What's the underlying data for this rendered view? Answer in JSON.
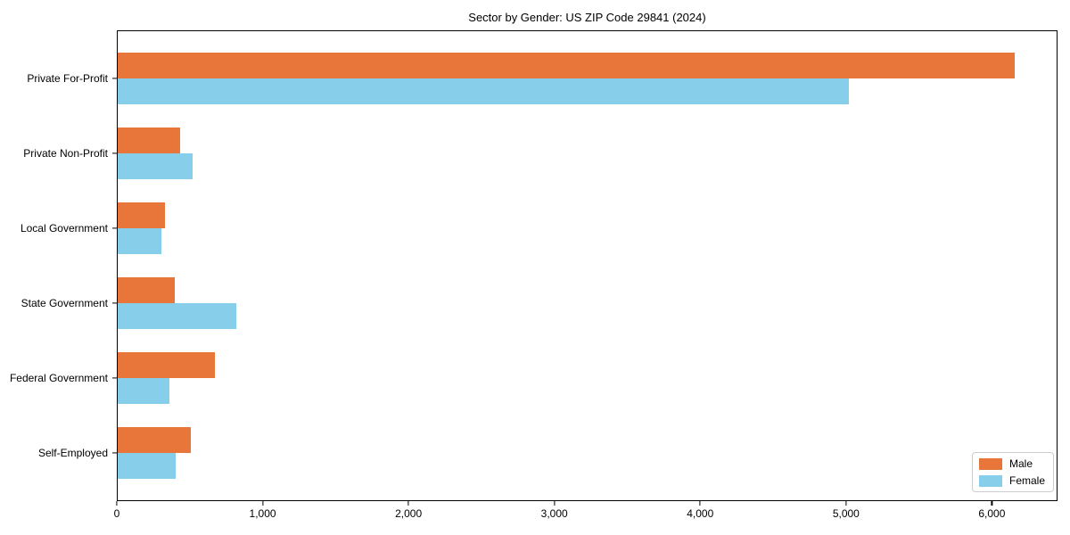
{
  "chart_data": {
    "type": "bar",
    "orientation": "horizontal",
    "title": "Sector by Gender: US ZIP Code 29841 (2024)",
    "categories": [
      "Private For-Profit",
      "Private Non-Profit",
      "Local Government",
      "State Government",
      "Federal Government",
      "Self-Employed"
    ],
    "series": [
      {
        "name": "Male",
        "color": "#e8763b",
        "values": [
          6150,
          430,
          325,
          390,
          665,
          500
        ]
      },
      {
        "name": "Female",
        "color": "#87ceeb",
        "values": [
          5010,
          515,
          300,
          810,
          355,
          395
        ]
      }
    ],
    "xlim": [
      0,
      6450
    ],
    "x_ticks": [
      0,
      1000,
      2000,
      3000,
      4000,
      5000,
      6000
    ],
    "x_tick_labels": [
      "0",
      "1,000",
      "2,000",
      "3,000",
      "4,000",
      "5,000",
      "6,000"
    ],
    "xlabel": "",
    "ylabel": "",
    "grid": false,
    "legend": {
      "position": "lower right",
      "entries": [
        "Male",
        "Female"
      ]
    }
  }
}
